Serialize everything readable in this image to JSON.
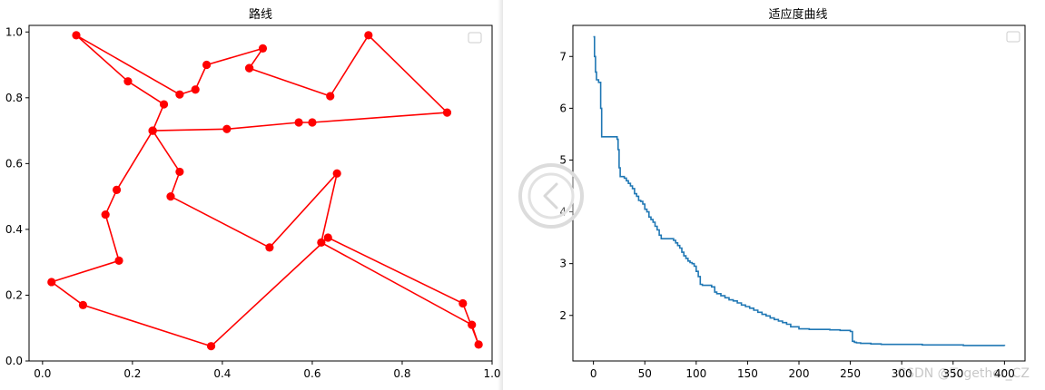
{
  "watermark": "CSDN @Together_CZ",
  "colors": {
    "route": "#ff0000",
    "fitness": "#1f77b4",
    "axis": "#000000"
  },
  "nav_icon": "chevron-left-icon",
  "chart_data": [
    {
      "type": "line",
      "title": "路线",
      "xlabel": "",
      "ylabel": "",
      "xlim": [
        -0.03,
        1.0
      ],
      "ylim": [
        0.0,
        1.02
      ],
      "xticks": [
        "0.0",
        "0.2",
        "0.4",
        "0.6",
        "0.8",
        "1.0"
      ],
      "yticks": [
        "0.0",
        "0.2",
        "0.4",
        "0.6",
        "0.8",
        "1.0"
      ],
      "grid": false,
      "legend": "top-right",
      "markers": true,
      "series": [
        {
          "x": [
            0.46,
            0.49,
            0.365,
            0.34,
            0.305,
            0.075,
            0.19,
            0.27,
            0.245,
            0.41,
            0.57,
            0.6,
            0.9,
            0.725,
            0.64,
            0.46
          ],
          "y": [
            0.89,
            0.95,
            0.9,
            0.825,
            0.81,
            0.99,
            0.85,
            0.78,
            0.7,
            0.705,
            0.725,
            0.725,
            0.755,
            0.99,
            0.805,
            0.89
          ]
        },
        {
          "x": [
            0.245,
            0.305,
            0.285,
            0.505,
            0.655,
            0.62,
            0.955,
            0.97,
            0.935,
            0.635,
            0.375,
            0.09,
            0.02,
            0.17,
            0.14,
            0.165,
            0.245
          ],
          "y": [
            0.7,
            0.575,
            0.5,
            0.345,
            0.57,
            0.36,
            0.11,
            0.05,
            0.175,
            0.375,
            0.045,
            0.17,
            0.24,
            0.305,
            0.445,
            0.52,
            0.7
          ]
        }
      ]
    },
    {
      "type": "line",
      "title": "适应度曲线",
      "xlabel": "",
      "ylabel": "",
      "xlim": [
        -20,
        420
      ],
      "ylim": [
        1.12,
        7.6
      ],
      "xticks": [
        "0",
        "50",
        "100",
        "150",
        "200",
        "250",
        "300",
        "350",
        "400"
      ],
      "yticks": [
        "2",
        "3",
        "4",
        "5",
        "6",
        "7"
      ],
      "grid": false,
      "legend": "top-right",
      "series": [
        {
          "x": [
            0,
            1,
            2,
            3,
            4,
            5,
            6,
            7,
            8,
            9,
            22,
            23,
            24,
            25,
            26,
            28,
            30,
            32,
            34,
            36,
            38,
            40,
            42,
            44,
            46,
            48,
            50,
            52,
            54,
            56,
            58,
            60,
            62,
            64,
            66,
            68,
            70,
            72,
            74,
            76,
            78,
            80,
            82,
            84,
            86,
            88,
            90,
            92,
            94,
            96,
            98,
            100,
            102,
            104,
            106,
            108,
            110,
            112,
            115,
            118,
            120,
            124,
            128,
            132,
            136,
            140,
            144,
            148,
            152,
            156,
            160,
            164,
            168,
            172,
            176,
            180,
            184,
            188,
            192,
            200,
            210,
            220,
            230,
            240,
            250,
            252,
            254,
            256,
            260,
            270,
            280,
            300,
            320,
            340,
            360,
            380,
            400
          ],
          "y": [
            7.38,
            7.0,
            6.7,
            6.55,
            6.55,
            6.5,
            6.5,
            6.0,
            5.45,
            5.45,
            5.45,
            5.4,
            5.2,
            4.85,
            4.68,
            4.68,
            4.65,
            4.6,
            4.55,
            4.5,
            4.45,
            4.35,
            4.3,
            4.22,
            4.2,
            4.15,
            4.05,
            4.0,
            3.9,
            3.85,
            3.8,
            3.72,
            3.65,
            3.55,
            3.48,
            3.48,
            3.48,
            3.48,
            3.48,
            3.48,
            3.45,
            3.4,
            3.35,
            3.3,
            3.22,
            3.15,
            3.1,
            3.05,
            3.02,
            3.0,
            2.95,
            2.85,
            2.75,
            2.6,
            2.58,
            2.58,
            2.58,
            2.58,
            2.55,
            2.45,
            2.42,
            2.38,
            2.34,
            2.3,
            2.28,
            2.24,
            2.2,
            2.17,
            2.14,
            2.1,
            2.06,
            2.02,
            1.99,
            1.95,
            1.92,
            1.89,
            1.86,
            1.83,
            1.78,
            1.74,
            1.73,
            1.73,
            1.72,
            1.71,
            1.69,
            1.5,
            1.48,
            1.47,
            1.46,
            1.45,
            1.44,
            1.44,
            1.43,
            1.43,
            1.42,
            1.42,
            1.41
          ]
        }
      ]
    }
  ]
}
